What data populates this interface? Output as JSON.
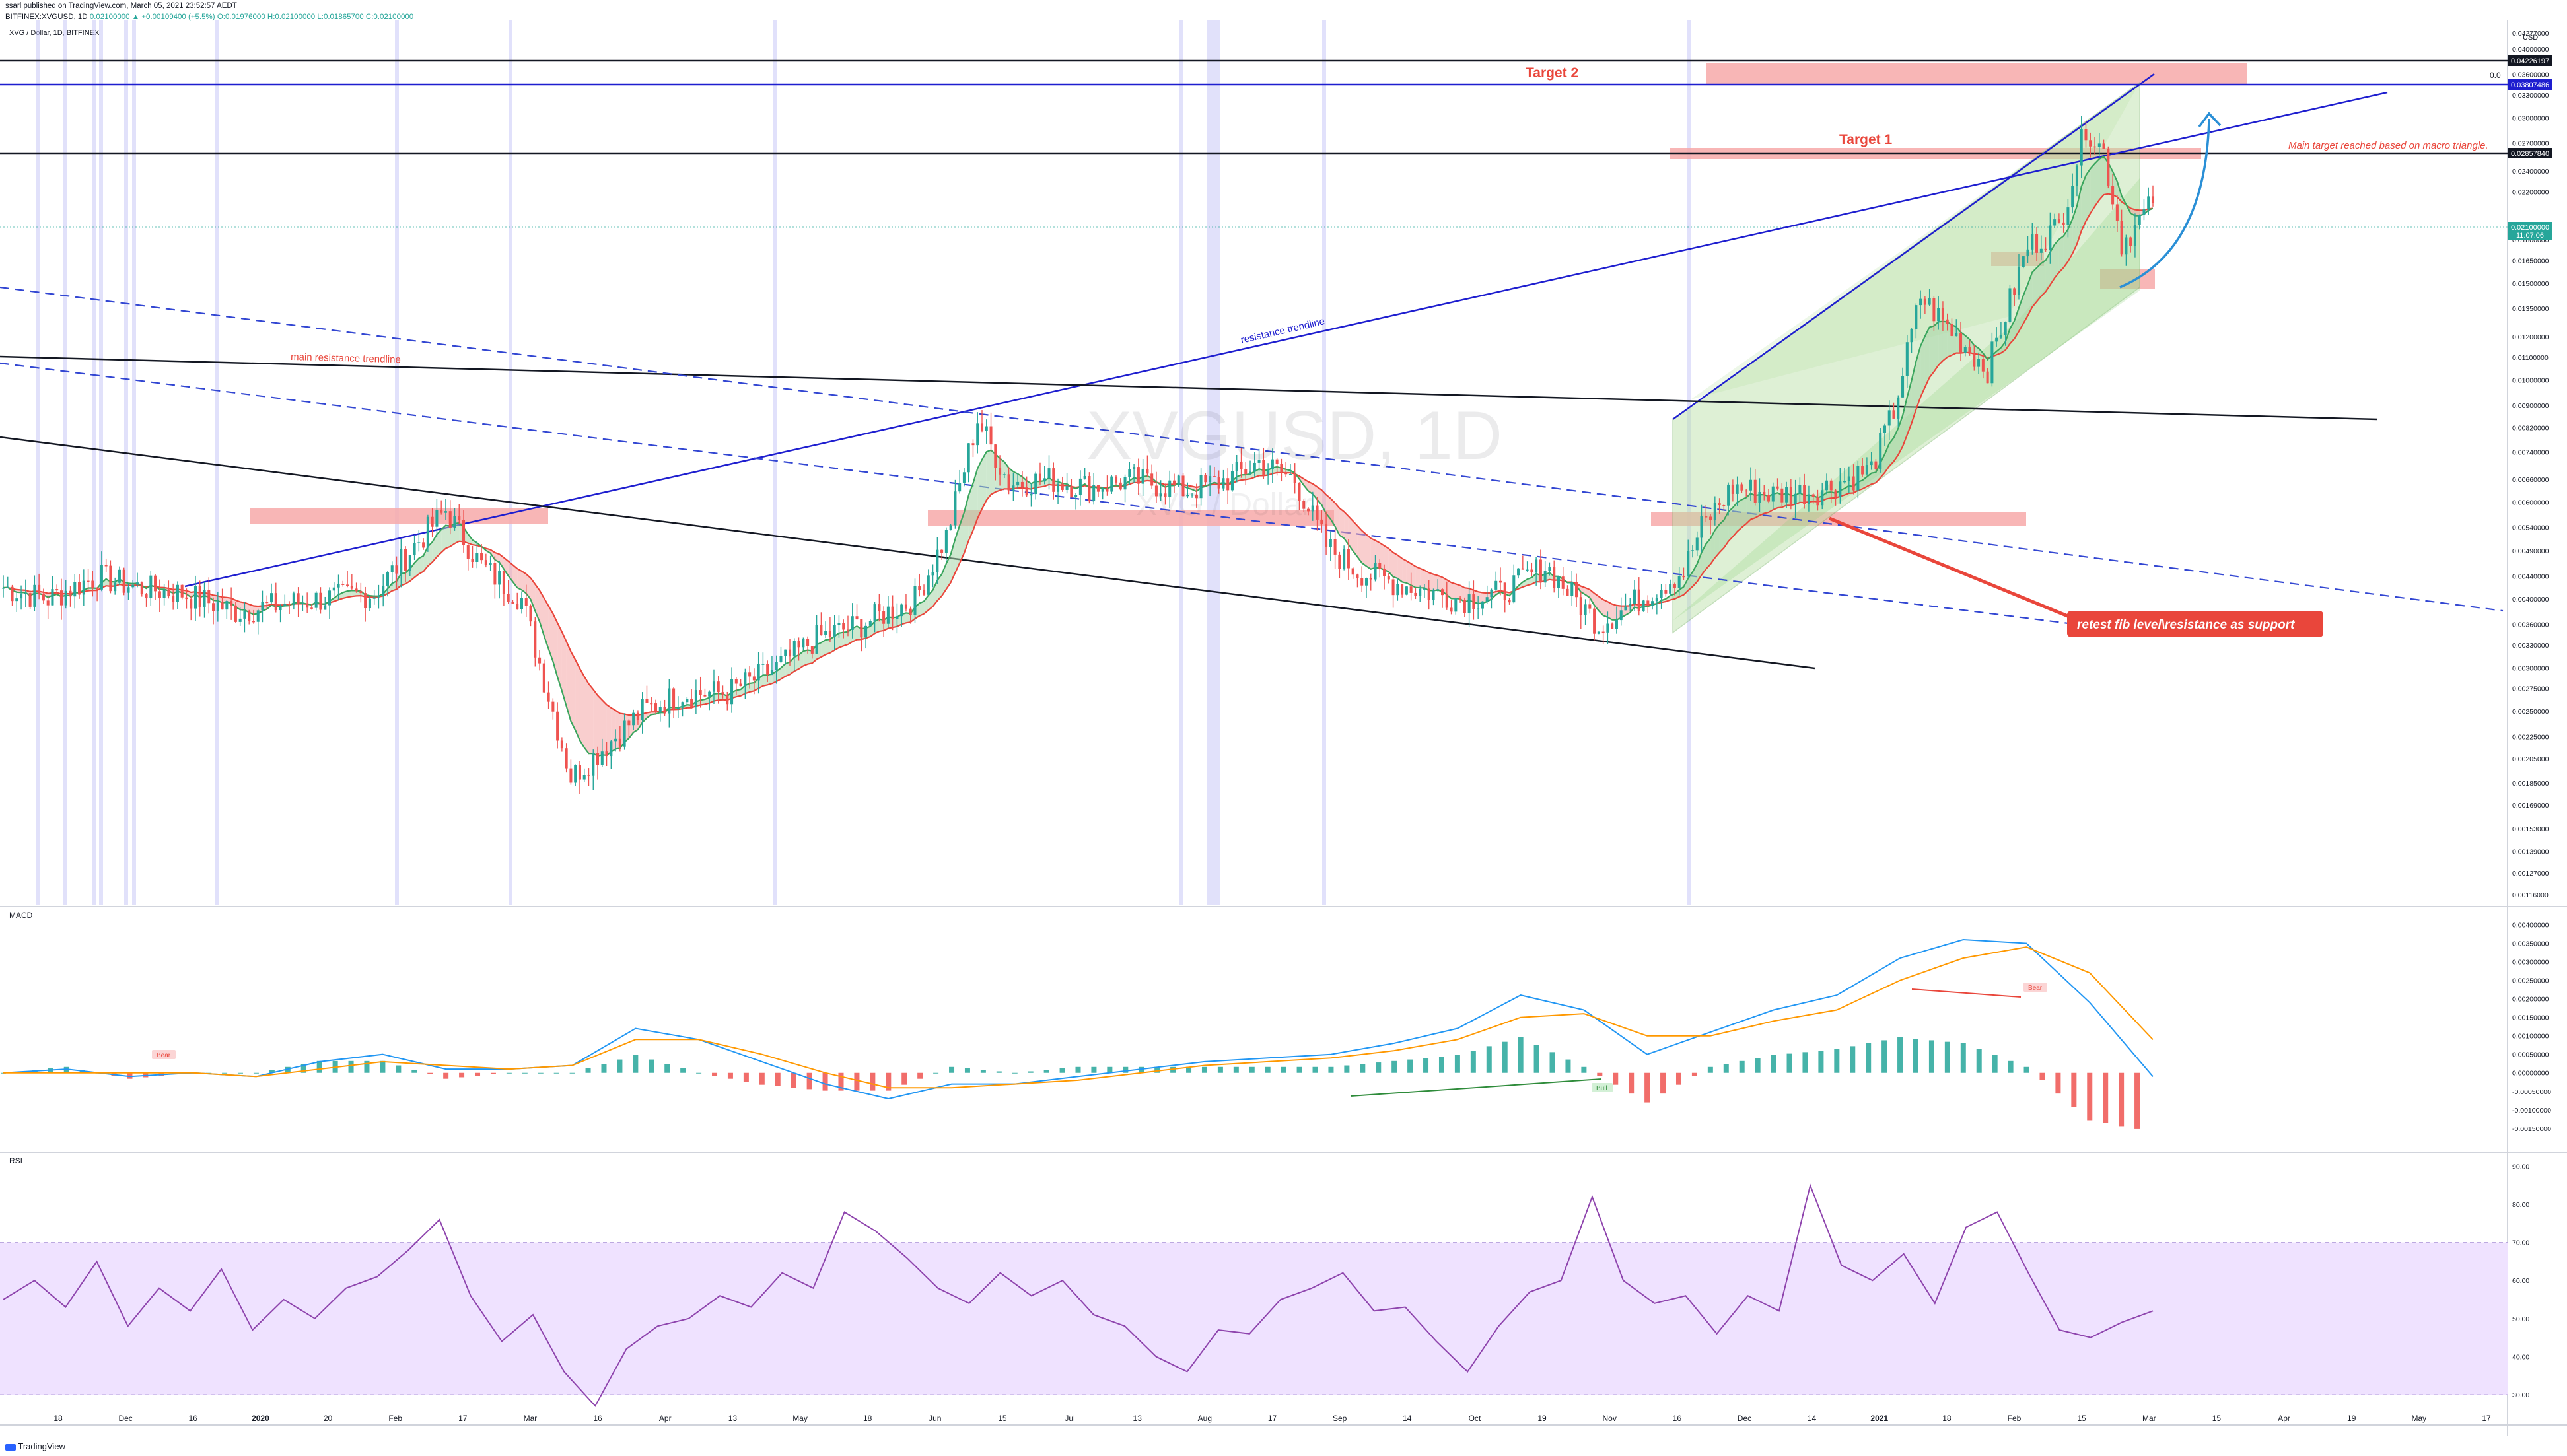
{
  "header": {
    "published": "ssarl published on TradingView.com, March 05, 2021 23:52:57 AEDT",
    "symbol": "BITFINEX:XVGUSD, 1D",
    "change": "0.02100000 ▲ +0.00109400 (+5.5%)",
    "ohlc": "O:0.01976000 H:0.02100000 L:0.01865700 C:0.02100000",
    "pane_title": "XVG / Dollar, 1D, BITFINEX"
  },
  "watermark": {
    "symbol": "XVGUSD, 1D",
    "sub": "XVG / Dollar"
  },
  "footer": {
    "brand": "TradingView"
  },
  "colors": {
    "up": "#26a69a",
    "down": "#ef5350",
    "blue": "#1e1ecf",
    "fib": "#3246d2",
    "zone": "#f7a9a9",
    "triangle": "#b7dfa3",
    "rsi_band": "#efe2ff",
    "rsi_line": "#8e44ad"
  },
  "chart_data": [
    {
      "type": "candlestick",
      "title": "XVG / Dollar, 1D, BITFINEX",
      "scale": "log",
      "x": [
        "2019-11-10",
        "2019-11-20",
        "2019-12-01",
        "2019-12-10",
        "2019-12-20",
        "2020-01-01",
        "2020-01-10",
        "2020-01-20",
        "2020-02-01",
        "2020-02-10",
        "2020-02-17",
        "2020-02-25",
        "2020-03-05",
        "2020-03-12",
        "2020-03-16",
        "2020-03-22",
        "2020-04-01",
        "2020-04-10",
        "2020-04-20",
        "2020-05-01",
        "2020-05-10",
        "2020-05-20",
        "2020-06-01",
        "2020-06-08",
        "2020-06-15",
        "2020-06-22",
        "2020-07-01",
        "2020-07-10",
        "2020-07-20",
        "2020-08-01",
        "2020-08-10",
        "2020-08-17",
        "2020-08-25",
        "2020-09-01",
        "2020-09-08",
        "2020-09-20",
        "2020-10-01",
        "2020-10-10",
        "2020-10-20",
        "2020-11-01",
        "2020-11-10",
        "2020-11-20",
        "2020-11-24",
        "2020-12-01",
        "2020-12-10",
        "2020-12-20",
        "2021-01-01",
        "2021-01-06",
        "2021-01-12",
        "2021-01-20",
        "2021-01-27",
        "2021-02-05",
        "2021-02-12",
        "2021-02-18",
        "2021-02-22",
        "2021-02-26",
        "2021-03-01",
        "2021-03-05"
      ],
      "close": [
        0.0042,
        0.004,
        0.0044,
        0.0042,
        0.0041,
        0.0038,
        0.0039,
        0.004,
        0.0041,
        0.005,
        0.0058,
        0.0046,
        0.004,
        0.0025,
        0.0019,
        0.0021,
        0.0025,
        0.0027,
        0.0027,
        0.003,
        0.0034,
        0.0036,
        0.004,
        0.0052,
        0.0085,
        0.0065,
        0.0066,
        0.0064,
        0.0066,
        0.0063,
        0.0066,
        0.0071,
        0.0066,
        0.005,
        0.0045,
        0.0042,
        0.004,
        0.0041,
        0.0046,
        0.0036,
        0.004,
        0.0045,
        0.0054,
        0.0064,
        0.0062,
        0.0063,
        0.0069,
        0.0088,
        0.0142,
        0.012,
        0.0105,
        0.0175,
        0.019,
        0.029,
        0.026,
        0.0178,
        0.019,
        0.021
      ],
      "ylim": [
        0.00116,
        0.04277
      ],
      "price_ticks": [
        "0.04277000",
        "0.04000000",
        "0.03600000",
        "0.03300000",
        "0.03000000",
        "0.02700000",
        "0.02400000",
        "0.02200000",
        "0.01800000",
        "0.01650000",
        "0.01500000",
        "0.01350000",
        "0.01200000",
        "0.01100000",
        "0.01000000",
        "0.00900000",
        "0.00820000",
        "0.00740000",
        "0.00660000",
        "0.00600000",
        "0.00540000",
        "0.00490000",
        "0.00440000",
        "0.00400000",
        "0.00360000",
        "0.00330000",
        "0.00300000",
        "0.00275000",
        "0.00250000",
        "0.00225000",
        "0.00205000",
        "0.00185000",
        "0.00169000",
        "0.00153000",
        "0.00139000",
        "0.00127000",
        "0.00116000"
      ],
      "price_unit": "USD",
      "time_ticks": [
        "18",
        "Dec",
        "16",
        "2020",
        "20",
        "Feb",
        "17",
        "Mar",
        "16",
        "Apr",
        "13",
        "May",
        "18",
        "Jun",
        "15",
        "Jul",
        "13",
        "Aug",
        "17",
        "Sep",
        "14",
        "Oct",
        "19",
        "Nov",
        "16",
        "Dec",
        "14",
        "2021",
        "18",
        "Feb",
        "15",
        "Mar",
        "15",
        "Apr",
        "19",
        "May",
        "17"
      ],
      "price_labels": {
        "target2_line": "0.04226197",
        "blue_line": "0.03807486",
        "target1_line": "0.02857840",
        "last": "0.02100000",
        "countdown": "11:07:06"
      },
      "annotations": {
        "target2": "Target 2",
        "target1": "Target 1",
        "main_target": "Main target reached based on macro triangle.",
        "resistance_trendline": "resistance trendline",
        "main_resistance": "main resistance trendline",
        "retest": "retest fib level\\resistance as support",
        "top_zero": "0.0"
      }
    },
    {
      "type": "line",
      "title": "MACD",
      "ticks": [
        "0.00400000",
        "0.00350000",
        "0.00300000",
        "0.00250000",
        "0.00200000",
        "0.00150000",
        "0.00100000",
        "0.00050000",
        "0.00000000",
        "-0.00050000",
        "-0.00100000",
        "-0.00150000"
      ],
      "ylim": [
        -0.0017,
        0.0041
      ],
      "labels": {
        "bear1": "Bear",
        "bear2": "Bear",
        "bull": "Bull"
      },
      "series": [
        {
          "values": [
            0.0,
            0.0001,
            -0.0001,
            0.0,
            -0.0001,
            0.0003,
            0.0005,
            0.0001,
            0.0001,
            0.0002,
            0.0012,
            0.0009,
            0.0003,
            -0.0003,
            -0.0007,
            -0.0003,
            -0.0003,
            -0.0001,
            0.0001,
            0.0003,
            0.0004,
            0.0005,
            0.0008,
            0.0012,
            0.0021,
            0.0017,
            0.0005,
            0.0011,
            0.0017,
            0.0021,
            0.0031,
            0.0036,
            0.0035,
            0.0019,
            -0.0001
          ]
        },
        {
          "values": [
            0.0,
            0.0,
            0.0,
            0.0,
            -0.0001,
            0.0001,
            0.0003,
            0.0002,
            0.0001,
            0.0002,
            0.0009,
            0.0009,
            0.0005,
            0.0,
            -0.0004,
            -0.0004,
            -0.0003,
            -0.0002,
            0.0,
            0.0002,
            0.0003,
            0.0004,
            0.0006,
            0.0009,
            0.0015,
            0.0016,
            0.001,
            0.001,
            0.0014,
            0.0017,
            0.0025,
            0.0031,
            0.0034,
            0.0027,
            0.0009
          ]
        }
      ]
    },
    {
      "type": "line",
      "title": "RSI",
      "ticks": [
        "90.00",
        "80.00",
        "70.00",
        "60.00",
        "50.00",
        "40.00",
        "30.00"
      ],
      "ylim": [
        26,
        92
      ],
      "series": [
        {
          "values": [
            55,
            60,
            53,
            65,
            48,
            58,
            52,
            63,
            47,
            55,
            50,
            58,
            61,
            68,
            76,
            56,
            44,
            51,
            36,
            27,
            42,
            48,
            50,
            56,
            53,
            62,
            58,
            78,
            73,
            66,
            58,
            54,
            62,
            56,
            60,
            51,
            48,
            40,
            36,
            47,
            46,
            55,
            58,
            62,
            52,
            53,
            44,
            36,
            48,
            57,
            60,
            82,
            60,
            54,
            56,
            46,
            56,
            52,
            85,
            64,
            60,
            67,
            54,
            74,
            78,
            62,
            47,
            45,
            49,
            52
          ]
        }
      ]
    }
  ]
}
